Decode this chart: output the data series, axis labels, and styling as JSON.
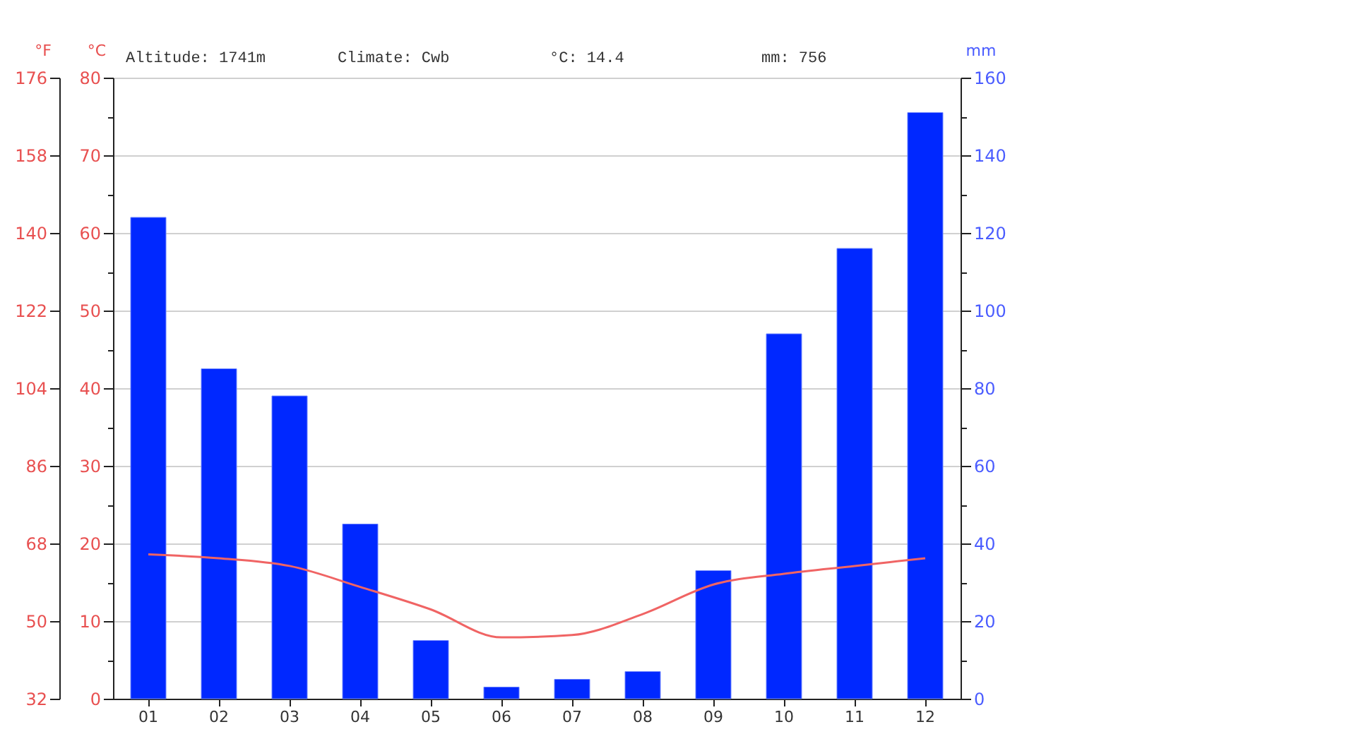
{
  "chart_data": {
    "type": "bar",
    "categories": [
      "01",
      "02",
      "03",
      "04",
      "05",
      "06",
      "07",
      "08",
      "09",
      "10",
      "11",
      "12"
    ],
    "series": [
      {
        "axis": "y2",
        "color": "#0028ff",
        "values": [
          124,
          85,
          78,
          45,
          15,
          3,
          5,
          7,
          33,
          94,
          116,
          151
        ]
      },
      {
        "type": "line",
        "axis": "y",
        "color": "#f06464",
        "values": [
          18.6,
          18.1,
          17.1,
          14.4,
          11.5,
          7.9,
          8.2,
          10.9,
          14.7,
          16.1,
          17.1,
          18.1
        ]
      }
    ],
    "ylabel": "°C",
    "y2label": "mm",
    "y3label": "°F",
    "ylim": [
      0,
      80
    ],
    "yticks": [
      0,
      {
        "value": 5,
        "label": null
      },
      10,
      {
        "value": 15,
        "label": null
      },
      20,
      {
        "value": 25,
        "label": null
      },
      30,
      {
        "value": 35,
        "label": null
      },
      40,
      {
        "value": 45,
        "label": null
      },
      50,
      {
        "value": 55,
        "label": null
      },
      60,
      {
        "value": 65,
        "label": null
      },
      70,
      {
        "value": 75,
        "label": null
      },
      80
    ],
    "y2lim": [
      0,
      160
    ],
    "y2ticks": [
      0,
      {
        "value": 10,
        "label": null
      },
      20,
      {
        "value": 30,
        "label": null
      },
      40,
      {
        "value": 50,
        "label": null
      },
      60,
      {
        "value": 70,
        "label": null
      },
      80,
      {
        "value": 90,
        "label": null
      },
      100,
      {
        "value": 110,
        "label": null
      },
      120,
      {
        "value": 130,
        "label": null
      },
      140,
      {
        "value": 150,
        "label": null
      },
      160
    ],
    "y3lim": [
      32,
      176
    ],
    "y3ticks": [
      32,
      50,
      68,
      86,
      104,
      122,
      140,
      158,
      176
    ],
    "annotations": [
      "Altitude: 1741m",
      "Climate: Cwb",
      "°C: 14.4",
      "mm: 756"
    ],
    "grid": "y",
    "line_style": "solid",
    "marker": "none"
  }
}
